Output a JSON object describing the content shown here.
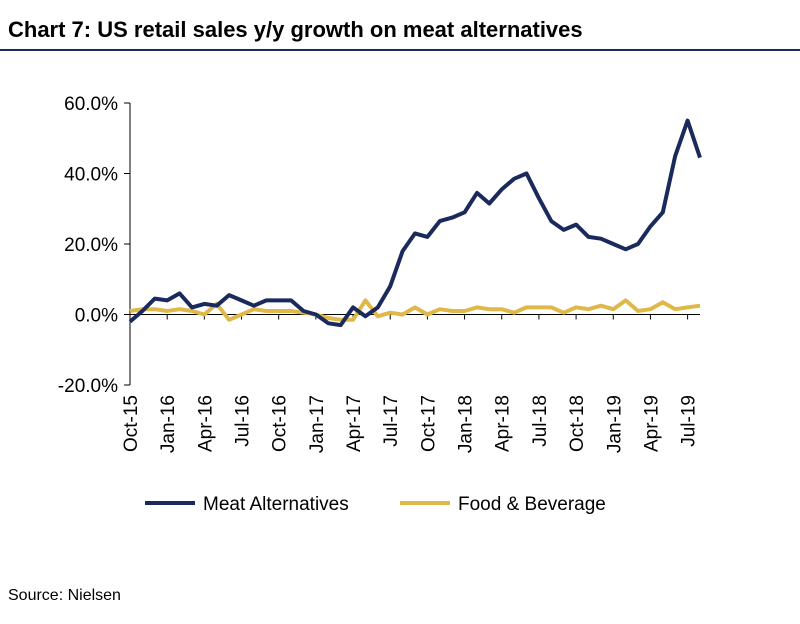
{
  "chart_data": {
    "type": "line",
    "title": "Chart 7: US retail sales y/y growth on meat alternatives",
    "source": "Source: Nielsen",
    "categories": [
      "Oct-15",
      null,
      null,
      "Jan-16",
      null,
      null,
      "Apr-16",
      null,
      null,
      "Jul-16",
      null,
      null,
      "Oct-16",
      null,
      null,
      "Jan-17",
      null,
      null,
      "Apr-17",
      null,
      null,
      "Jul-17",
      null,
      null,
      "Oct-17",
      null,
      null,
      "Jan-18",
      null,
      null,
      "Apr-18",
      null,
      null,
      "Jul-18",
      null,
      null,
      "Oct-18",
      null,
      null,
      "Jan-19",
      null,
      null,
      "Apr-19",
      null,
      null,
      "Jul-19",
      null
    ],
    "series": [
      {
        "name": "Meat Alternatives",
        "color": "#1b2a5c",
        "values": [
          -2,
          1,
          4.5,
          4,
          6,
          2,
          3,
          2.5,
          5.5,
          4,
          2.5,
          4,
          4,
          4,
          1,
          0,
          -2.5,
          -3,
          2,
          -0.5,
          2,
          8,
          18,
          23,
          22,
          26.5,
          27.5,
          29,
          34.5,
          31.5,
          35.5,
          38.5,
          40,
          33,
          26.5,
          24,
          25.5,
          22,
          21.5,
          20,
          18.5,
          20,
          25,
          29,
          45,
          55,
          44.5
        ]
      },
      {
        "name": "Food & Beverage",
        "color": "#e0b84a",
        "values": [
          1,
          1.5,
          1.5,
          1,
          1.5,
          1,
          0,
          3,
          -1.5,
          0,
          1.5,
          1,
          1,
          1,
          0.5,
          0,
          -1,
          -1.5,
          -1.5,
          4,
          -0.5,
          0.5,
          0,
          2,
          0,
          1.5,
          1,
          1,
          2,
          1.5,
          1.5,
          0.5,
          2,
          2,
          2,
          0.5,
          2,
          1.5,
          2.5,
          1.5,
          4,
          1,
          1.5,
          3.5,
          1.5,
          2,
          2.5
        ]
      }
    ],
    "ylim": [
      -20,
      60
    ],
    "yticks": [
      {
        "value": -20,
        "label": "-20.0%"
      },
      {
        "value": 0,
        "label": "0.0%"
      },
      {
        "value": 20,
        "label": "20.0%"
      },
      {
        "value": 40,
        "label": "40.0%"
      },
      {
        "value": 60,
        "label": "60.0%"
      }
    ],
    "legend": "bottom"
  }
}
